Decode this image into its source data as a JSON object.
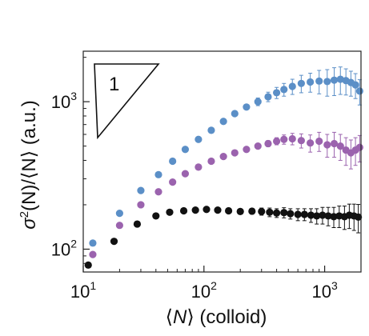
{
  "chart_data": {
    "type": "scatter",
    "x_scale": "log",
    "y_scale": "log",
    "xlim": [
      10,
      2000
    ],
    "ylim": [
      70,
      2200
    ],
    "xlabel": {
      "prefix": "⟨",
      "var": "N",
      "suffix": "⟩ (colloid)"
    },
    "ylabel": {
      "sigma": "σ",
      "sup": "2",
      "rest": "(N)/⟨N⟩ (a.u.)"
    },
    "x_ticks": [
      {
        "value": 10,
        "base": "10",
        "exp": "1"
      },
      {
        "value": 100,
        "base": "10",
        "exp": "2"
      },
      {
        "value": 1000,
        "base": "10",
        "exp": "3"
      }
    ],
    "y_ticks": [
      {
        "value": 100,
        "base": "10",
        "exp": "2"
      },
      {
        "value": 1000,
        "base": "10",
        "exp": "3"
      }
    ],
    "annotation": {
      "text": "1",
      "shape": "slope-triangle"
    },
    "grid": false,
    "series": [
      {
        "color": "#5b8fc7",
        "x": [
          12,
          20,
          30,
          42,
          55,
          70,
          90,
          115,
          145,
          180,
          225,
          280,
          340,
          400,
          460,
          540,
          640,
          760,
          900,
          1050,
          1200,
          1350,
          1500,
          1650,
          1800,
          1950
        ],
        "y": [
          110,
          175,
          250,
          320,
          395,
          475,
          555,
          640,
          735,
          830,
          920,
          1000,
          1080,
          1150,
          1210,
          1270,
          1330,
          1360,
          1380,
          1370,
          1400,
          1420,
          1390,
          1350,
          1300,
          1180
        ],
        "err": [
          0,
          0,
          0,
          0,
          0,
          0,
          0,
          0,
          0,
          0,
          0,
          60,
          80,
          100,
          120,
          150,
          180,
          200,
          250,
          280,
          300,
          300,
          280,
          260,
          250,
          230
        ]
      },
      {
        "color": "#9b63ae",
        "x": [
          12,
          20,
          30,
          42,
          55,
          70,
          90,
          115,
          145,
          180,
          225,
          280,
          340,
          400,
          460,
          540,
          640,
          760,
          900,
          1050,
          1200,
          1350,
          1500,
          1650,
          1800,
          1950
        ],
        "y": [
          92,
          145,
          200,
          245,
          285,
          325,
          360,
          395,
          425,
          450,
          475,
          500,
          520,
          540,
          555,
          560,
          545,
          525,
          540,
          510,
          520,
          500,
          470,
          450,
          470,
          490
        ],
        "err": [
          0,
          0,
          0,
          0,
          0,
          0,
          0,
          0,
          0,
          0,
          0,
          20,
          25,
          30,
          40,
          50,
          60,
          70,
          80,
          90,
          100,
          100,
          100,
          100,
          100,
          100
        ]
      },
      {
        "color": "#111111",
        "x": [
          11,
          18,
          28,
          40,
          52,
          68,
          85,
          105,
          130,
          160,
          200,
          250,
          300,
          350,
          400,
          460,
          520,
          600,
          680,
          770,
          860,
          960,
          1070,
          1190,
          1320,
          1460,
          1600,
          1750,
          1900
        ],
        "y": [
          78,
          113,
          148,
          168,
          178,
          182,
          184,
          186,
          184,
          182,
          180,
          181,
          180,
          178,
          176,
          177,
          174,
          172,
          172,
          170,
          168,
          170,
          168,
          166,
          168,
          166,
          170,
          168,
          165
        ],
        "err": [
          0,
          0,
          0,
          0,
          0,
          0,
          0,
          0,
          0,
          4,
          6,
          8,
          10,
          12,
          12,
          14,
          14,
          16,
          16,
          18,
          20,
          22,
          24,
          26,
          28,
          30,
          32,
          34,
          36
        ]
      }
    ]
  }
}
